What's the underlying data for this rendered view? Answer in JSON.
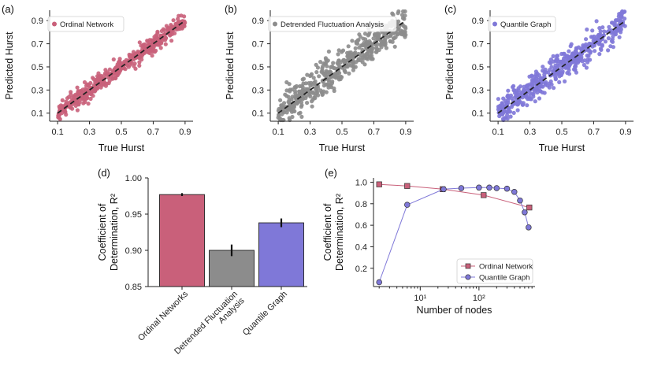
{
  "colors": {
    "ordinal": "#c9607a",
    "dfa": "#8c8c8c",
    "quantile": "#7f78d8",
    "dash": "#222222",
    "errbar": "#111111"
  },
  "chart_data": [
    {
      "type": "scatter",
      "panel_label": "(a)",
      "legend": "Ordinal Network",
      "xlabel": "True Hurst",
      "ylabel": "Predicted Hurst",
      "xlim": [
        0.05,
        0.95
      ],
      "ylim": [
        0.03,
        0.99
      ],
      "xticks": [
        "0.1",
        "0.3",
        "0.5",
        "0.7",
        "0.9"
      ],
      "yticks": [
        "0.1",
        "0.3",
        "0.5",
        "0.7",
        "0.9"
      ],
      "x_range": [
        0.1,
        0.9
      ],
      "y_spread": 0.035,
      "n_points": 500,
      "color_key": "ordinal",
      "reference_line": "y = x"
    },
    {
      "type": "scatter",
      "panel_label": "(b)",
      "legend": "Detrended Fluctuation Analysis",
      "xlabel": "True Hurst",
      "ylabel": "Predicted Hurst",
      "xlim": [
        0.05,
        0.95
      ],
      "ylim": [
        0.03,
        0.99
      ],
      "xticks": [
        "0.1",
        "0.3",
        "0.5",
        "0.7",
        "0.9"
      ],
      "yticks": [
        "0.1",
        "0.3",
        "0.5",
        "0.7",
        "0.9"
      ],
      "x_range": [
        0.1,
        0.9
      ],
      "y_spread": 0.075,
      "n_points": 500,
      "color_key": "dfa",
      "reference_line": "y = x"
    },
    {
      "type": "scatter",
      "panel_label": "(c)",
      "legend": "Quantile Graph",
      "xlabel": "True Hurst",
      "ylabel": "Predicted Hurst",
      "xlim": [
        0.05,
        0.95
      ],
      "ylim": [
        0.03,
        0.99
      ],
      "xticks": [
        "0.1",
        "0.3",
        "0.5",
        "0.7",
        "0.9"
      ],
      "yticks": [
        "0.1",
        "0.3",
        "0.5",
        "0.7",
        "0.9"
      ],
      "x_range": [
        0.1,
        0.9
      ],
      "y_spread": 0.06,
      "n_points": 500,
      "color_key": "quantile",
      "reference_line": "y = x"
    },
    {
      "type": "bar",
      "panel_label": "(d)",
      "ylabel_line1": "Coefficient of",
      "ylabel_line2": "Determination, R²",
      "ylim": [
        0.85,
        1.0
      ],
      "yticks": [
        "0.85",
        "0.90",
        "0.95",
        "1.00"
      ],
      "categories": [
        {
          "lines": [
            "Ordinal Networks"
          ],
          "value": 0.977,
          "err": 0.002,
          "color_key": "ordinal"
        },
        {
          "lines": [
            "Detrended Fluctuation",
            "Analysis"
          ],
          "value": 0.9,
          "err": 0.008,
          "color_key": "dfa"
        },
        {
          "lines": [
            "Quantile Graph"
          ],
          "value": 0.938,
          "err": 0.006,
          "color_key": "quantile"
        }
      ]
    },
    {
      "type": "line",
      "panel_label": "(e)",
      "xlabel": "Number of nodes",
      "ylabel_line1": "Coefficient of",
      "ylabel_line2": "Determination, R²",
      "xscale": "log",
      "xlim": [
        1.6,
        900
      ],
      "ylim": [
        0.03,
        1.04
      ],
      "yticks": [
        "0.2",
        "0.4",
        "0.6",
        "0.8",
        "1.0"
      ],
      "xticks": [
        "10¹",
        "10²"
      ],
      "legend_position": "lower-right",
      "series": [
        {
          "name": "Ordinal Network",
          "marker": "square",
          "color_key": "ordinal",
          "x": [
            2,
            6,
            24,
            120,
            720
          ],
          "y": [
            0.98,
            0.965,
            0.935,
            0.88,
            0.765
          ]
        },
        {
          "name": "Quantile Graph",
          "marker": "circle",
          "color_key": "quantile",
          "x": [
            2,
            6,
            25,
            50,
            100,
            150,
            200,
            300,
            400,
            500,
            600,
            700
          ],
          "y": [
            0.07,
            0.79,
            0.935,
            0.945,
            0.95,
            0.95,
            0.945,
            0.94,
            0.91,
            0.83,
            0.72,
            0.58
          ]
        }
      ]
    }
  ]
}
